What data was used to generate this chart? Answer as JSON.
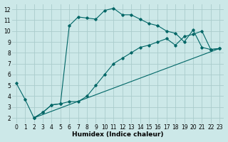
{
  "xlabel": "Humidex (Indice chaleur)",
  "bg_color": "#cce8e8",
  "grid_color": "#aacccc",
  "line_color": "#006666",
  "xlim": [
    -0.5,
    23.5
  ],
  "ylim": [
    1.5,
    12.5
  ],
  "xticks": [
    0,
    1,
    2,
    3,
    4,
    5,
    6,
    7,
    8,
    9,
    10,
    11,
    12,
    13,
    14,
    15,
    16,
    17,
    18,
    19,
    20,
    21,
    22,
    23
  ],
  "yticks": [
    2,
    3,
    4,
    5,
    6,
    7,
    8,
    9,
    10,
    11,
    12
  ],
  "series1_x": [
    0,
    1,
    2,
    3,
    4,
    5,
    6,
    7,
    8,
    9,
    10,
    11,
    12,
    13,
    14,
    15,
    16,
    17,
    18,
    19,
    20,
    21,
    22,
    23
  ],
  "series1_y": [
    5.2,
    3.7,
    2.0,
    2.5,
    3.2,
    3.3,
    10.5,
    11.3,
    11.2,
    11.1,
    11.9,
    12.1,
    11.5,
    11.5,
    11.1,
    10.7,
    10.5,
    10.0,
    9.8,
    9.0,
    10.1,
    8.5,
    8.3,
    8.4
  ],
  "series2_x": [
    2,
    3,
    4,
    5,
    6,
    7,
    8,
    9,
    10,
    11,
    12,
    13,
    14,
    15,
    16,
    17,
    18,
    19,
    20,
    21,
    22,
    23
  ],
  "series2_y": [
    2.0,
    2.5,
    3.2,
    3.3,
    3.5,
    3.5,
    4.0,
    5.0,
    6.0,
    7.0,
    7.5,
    8.0,
    8.5,
    8.7,
    9.0,
    9.3,
    8.7,
    9.5,
    9.7,
    10.0,
    8.3,
    8.4
  ],
  "series3_x": [
    2,
    23
  ],
  "series3_y": [
    2.0,
    8.4
  ],
  "tick_fontsize": 5.5,
  "xlabel_fontsize": 6.5
}
